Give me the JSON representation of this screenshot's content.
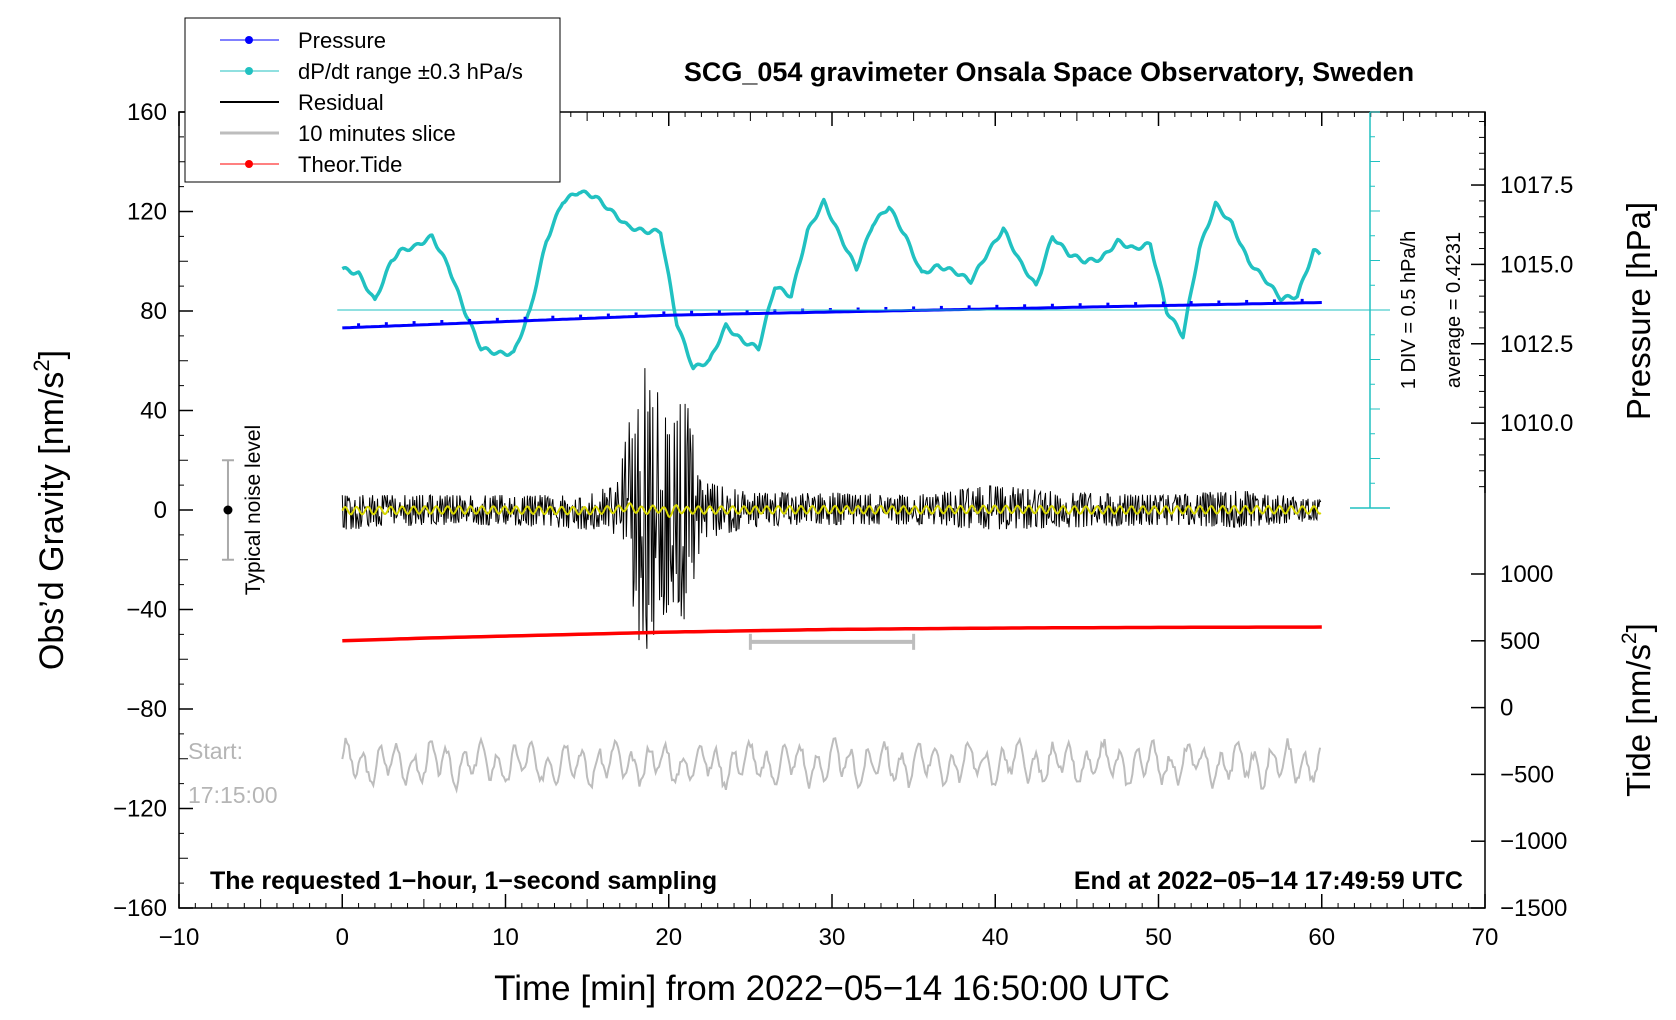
{
  "chart_data": {
    "type": "line",
    "title": "SCG_054 gravimeter Onsala Space Observatory, Sweden",
    "xlabel": "Time [min] from 2022−05−14 16:50:00 UTC",
    "ylabel_left_base": "Obs’d Gravity [nm/s",
    "ylabel_right_top": "Pressure [hPa]",
    "ylabel_right_bottom_base": "Tide [nm/s",
    "unit_superscript": "2",
    "unit_close": "]",
    "xlim": [
      -10,
      70
    ],
    "ylim": [
      -160,
      160
    ],
    "x_ticks": [
      "−10",
      "0",
      "10",
      "20",
      "30",
      "40",
      "50",
      "60",
      "70"
    ],
    "y_ticks_left": [
      "160",
      "120",
      "80",
      "40",
      "0",
      "−40",
      "−80",
      "−120",
      "−160"
    ],
    "pressure_axis": {
      "range_hPa": [
        1007.8,
        1019.8
      ],
      "tick_labels": [
        "1017.5",
        "1015.0",
        "1012.5",
        "1010.0"
      ],
      "tick_values": [
        1017.5,
        1015.0,
        1012.5,
        1010.0
      ]
    },
    "tide_axis": {
      "range": [
        -1500,
        1000
      ],
      "tick_labels": [
        "1000",
        "500",
        "0",
        "−500",
        "−1000",
        "−1500"
      ],
      "tick_values": [
        1000,
        500,
        0,
        -500,
        -1000,
        -1500
      ]
    },
    "legend": {
      "position": "top-left",
      "entries": [
        "Pressure",
        "dP/dt range ±0.3 hPa/s",
        "Residual",
        "10 minutes slice",
        "Theor.Tide"
      ]
    },
    "colors": {
      "pressure": "#0000ff",
      "dpdt": "#21c1c1",
      "residual": "#000000",
      "residual_smooth": "#d8d800",
      "slice": "#bdbdbd",
      "tide": "#ff0000"
    },
    "series": [
      {
        "name": "Pressure",
        "unit": "hPa",
        "x": [
          0,
          5,
          10,
          15,
          20,
          25,
          30,
          35,
          40,
          45,
          50,
          55,
          60
        ],
        "values": [
          1013.0,
          1013.1,
          1013.2,
          1013.3,
          1013.4,
          1013.45,
          1013.5,
          1013.55,
          1013.6,
          1013.65,
          1013.7,
          1013.75,
          1013.8
        ]
      },
      {
        "name": "dP/dt range ±0.3 hPa/s",
        "unit": "nm/s2 plot units",
        "x": [
          0,
          1,
          2,
          3,
          3.5,
          4.5,
          5.5,
          6.5,
          7.5,
          8.5,
          9.5,
          10.5,
          11.5,
          12.5,
          13.5,
          14.5,
          15.5,
          16.5,
          17.5,
          18.5,
          19.5,
          20.5,
          21.5,
          22.5,
          23.5,
          24.5,
          25.5,
          26.5,
          27.5,
          28.5,
          29.5,
          30.5,
          31.5,
          32.5,
          33.5,
          34.5,
          35.5,
          36.5,
          37.5,
          38.5,
          39.5,
          40.5,
          41.5,
          42.5,
          43.5,
          44.5,
          45.5,
          46.5,
          47.5,
          48.5,
          49.5,
          50.5,
          51.5,
          52.5,
          53.5,
          54.5,
          55.5,
          56.5,
          57.5,
          58.5,
          59.5,
          60
        ],
        "values": [
          97,
          95,
          84,
          100,
          104,
          106,
          110,
          98,
          80,
          65,
          63,
          63,
          80,
          108,
          124,
          128,
          126,
          120,
          114,
          112,
          112,
          75,
          57,
          60,
          74,
          68,
          65,
          90,
          86,
          112,
          124,
          110,
          97,
          115,
          122,
          110,
          95,
          98,
          96,
          92,
          103,
          113,
          100,
          90,
          110,
          103,
          100,
          101,
          108,
          105,
          107,
          80,
          70,
          105,
          123,
          115,
          100,
          93,
          85,
          86,
          104,
          103
        ]
      },
      {
        "name": "Residual",
        "unit": "nm/s2",
        "x": [
          0,
          5,
          10,
          15,
          17,
          17.5,
          18,
          18.5,
          19,
          19.5,
          20,
          20.5,
          21,
          21.5,
          22,
          25,
          30,
          35,
          40,
          45,
          50,
          55,
          60
        ],
        "values_min": [
          -8,
          -6,
          -6,
          -8,
          -10,
          -30,
          -48,
          -60,
          -52,
          -45,
          -40,
          -35,
          -50,
          -30,
          -12,
          -7,
          -6,
          -6,
          -8,
          -7,
          -6,
          -7,
          -4
        ],
        "values_max": [
          6,
          6,
          6,
          6,
          12,
          40,
          50,
          58,
          54,
          48,
          30,
          40,
          48,
          30,
          12,
          7,
          7,
          6,
          10,
          7,
          6,
          8,
          4
        ]
      },
      {
        "name": "10 minutes slice",
        "slice_start_min": 25,
        "slice_end_min": 35,
        "unit": "nm/s2",
        "x_range": [
          0,
          60
        ],
        "baseline": -102,
        "amplitude": 10
      },
      {
        "name": "Theor.Tide",
        "unit": "nm/s2",
        "x": [
          0,
          5,
          10,
          15,
          20,
          25,
          30,
          35,
          40,
          45,
          50,
          55,
          60
        ],
        "values": [
          500,
          520,
          535,
          550,
          565,
          575,
          585,
          590,
          595,
          598,
          600,
          602,
          603
        ]
      }
    ],
    "annotations": {
      "noise_label": "Typical noise level",
      "start_label_1": "Start:",
      "start_label_2": "17:15:00",
      "sampling_note": "The requested 1−hour, 1−second sampling",
      "end_note": "End at 2022−05−14 17:49:59 UTC",
      "div_note": "1 DIV = 0.5 hPa/h",
      "average_note": "average = 0.4231",
      "noise_level_range": [
        -20,
        20
      ]
    }
  }
}
